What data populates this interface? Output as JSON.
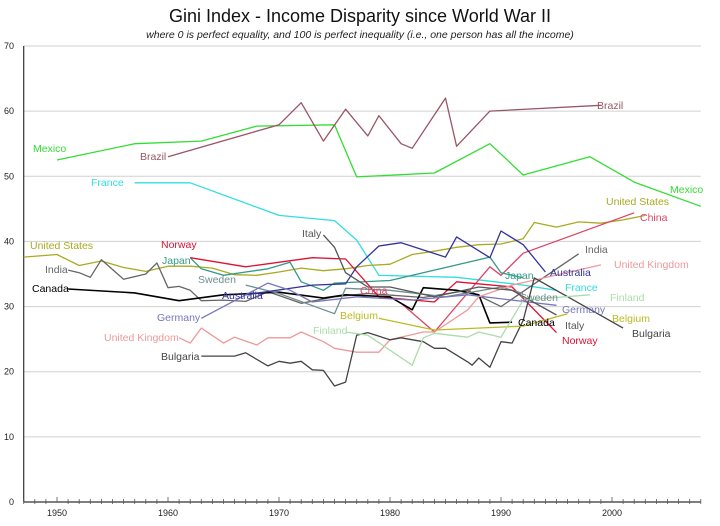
{
  "chart_data": {
    "type": "line",
    "title": "Gini Index - Income Disparity since World War II",
    "subtitle": "where 0 is perfect equality, and 100 is perfect inequality (i.e., one person has all the income)",
    "xlabel": "",
    "ylabel": "",
    "xlim": [
      1947,
      2008
    ],
    "ylim": [
      0,
      70
    ],
    "x_ticks": [
      "1950",
      "1960",
      "1970",
      "1980",
      "1990",
      "2000"
    ],
    "y_ticks": [
      "0",
      "10",
      "20",
      "30",
      "40",
      "50",
      "60",
      "70"
    ],
    "grid": true,
    "legend": "inline labels at both ends of each line",
    "series": [
      {
        "name": "Mexico",
        "color": "#33dd33",
        "points": [
          [
            1950,
            52.5
          ],
          [
            1957,
            55
          ],
          [
            1963,
            55.4
          ],
          [
            1968,
            57.7
          ],
          [
            1975,
            57.9
          ],
          [
            1977,
            49.9
          ],
          [
            1984,
            50.5
          ],
          [
            1989,
            55
          ],
          [
            1992,
            50.2
          ],
          [
            1998,
            53
          ],
          [
            2002,
            49.1
          ],
          [
            2008,
            45.4
          ]
        ]
      },
      {
        "name": "Brazil",
        "color": "#995566",
        "points": [
          [
            1960,
            53
          ],
          [
            1970,
            57.9
          ],
          [
            1972,
            61.3
          ],
          [
            1974,
            55.4
          ],
          [
            1976,
            60.3
          ],
          [
            1978,
            56.2
          ],
          [
            1979,
            59.3
          ],
          [
            1981,
            55
          ],
          [
            1982,
            54.3
          ],
          [
            1985,
            62
          ],
          [
            1986,
            54.6
          ],
          [
            1989,
            60
          ],
          [
            1999,
            60.9
          ]
        ]
      },
      {
        "name": "France",
        "color": "#33dddd",
        "points": [
          [
            1957,
            49
          ],
          [
            1962,
            49
          ],
          [
            1970,
            44
          ],
          [
            1975,
            43.2
          ],
          [
            1977,
            40.2
          ],
          [
            1979,
            34.8
          ],
          [
            1986,
            34.5
          ],
          [
            1992,
            33.3
          ],
          [
            1995,
            32.5
          ]
        ]
      },
      {
        "name": "United States",
        "color": "#aaaa22",
        "points": [
          [
            1947,
            37.6
          ],
          [
            1950,
            38
          ],
          [
            1952,
            36.3
          ],
          [
            1954,
            37
          ],
          [
            1956,
            36
          ],
          [
            1958,
            35.4
          ],
          [
            1960,
            36.2
          ],
          [
            1962,
            36.2
          ],
          [
            1964,
            35.9
          ],
          [
            1966,
            34.9
          ],
          [
            1968,
            34.8
          ],
          [
            1970,
            35.3
          ],
          [
            1972,
            35.9
          ],
          [
            1974,
            35.5
          ],
          [
            1976,
            35.8
          ],
          [
            1978,
            36.3
          ],
          [
            1980,
            36.5
          ],
          [
            1982,
            38
          ],
          [
            1984,
            38.5
          ],
          [
            1986,
            39.1
          ],
          [
            1988,
            39.5
          ],
          [
            1990,
            39.6
          ],
          [
            1992,
            40.4
          ],
          [
            1993,
            42.9
          ],
          [
            1995,
            42.2
          ],
          [
            1997,
            43
          ],
          [
            1999,
            42.8
          ],
          [
            2001,
            43.3
          ],
          [
            2003,
            44
          ]
        ]
      },
      {
        "name": "China",
        "color": "#dd4466",
        "points": [
          [
            1981,
            30.5
          ],
          [
            1984,
            26.1
          ],
          [
            1989,
            36.1
          ],
          [
            1990,
            34.8
          ],
          [
            1992,
            38.2
          ],
          [
            2002,
            44.4
          ]
        ]
      },
      {
        "name": "India",
        "color": "#666666",
        "points": [
          [
            1951,
            35.6
          ],
          [
            1952,
            35.2
          ],
          [
            1953,
            34.5
          ],
          [
            1954,
            37.2
          ],
          [
            1956,
            34.2
          ],
          [
            1958,
            35
          ],
          [
            1959,
            36.7
          ],
          [
            1960,
            32.9
          ],
          [
            1961,
            33.1
          ],
          [
            1962,
            32.5
          ],
          [
            1963,
            30.9
          ],
          [
            1965,
            31
          ],
          [
            1967,
            30.8
          ],
          [
            1969,
            32.3
          ],
          [
            1972,
            30.5
          ],
          [
            1975,
            31.5
          ],
          [
            1978,
            32
          ],
          [
            1983,
            31.4
          ],
          [
            1987,
            32.5
          ],
          [
            1990,
            30
          ],
          [
            1993,
            33.5
          ],
          [
            1997,
            38.1
          ]
        ]
      },
      {
        "name": "Japan",
        "color": "#339988",
        "points": [
          [
            1962,
            37.5
          ],
          [
            1963,
            35.8
          ],
          [
            1965,
            34.8
          ],
          [
            1967,
            35.3
          ],
          [
            1969,
            35.8
          ],
          [
            1971,
            36.8
          ],
          [
            1972,
            33.8
          ],
          [
            1974,
            32.5
          ],
          [
            1975,
            33.6
          ],
          [
            1980,
            34
          ],
          [
            1989,
            37.6
          ],
          [
            1990,
            35.2
          ],
          [
            1992,
            34.4
          ]
        ]
      },
      {
        "name": "Norway",
        "color": "#dd1133",
        "points": [
          [
            1962,
            37.5
          ],
          [
            1967,
            36.1
          ],
          [
            1973,
            37.5
          ],
          [
            1976,
            37.3
          ],
          [
            1979,
            31.5
          ],
          [
            1984,
            30.7
          ],
          [
            1986,
            33.8
          ],
          [
            1991,
            33
          ],
          [
            1995,
            26
          ]
        ]
      },
      {
        "name": "Canada",
        "color": "#000000",
        "points": [
          [
            1951,
            32.7
          ],
          [
            1957,
            32.1
          ],
          [
            1961,
            30.9
          ],
          [
            1965,
            31.8
          ],
          [
            1970,
            32.2
          ],
          [
            1974,
            31.3
          ],
          [
            1976,
            31.8
          ],
          [
            1980,
            31.5
          ],
          [
            1982,
            29.5
          ],
          [
            1983,
            32.9
          ],
          [
            1986,
            32.5
          ],
          [
            1988,
            31.8
          ],
          [
            1989,
            27.5
          ],
          [
            1991,
            27.6
          ]
        ]
      },
      {
        "name": "Sweden",
        "color": "#6f8f8f",
        "points": [
          [
            1967,
            33.3
          ],
          [
            1970,
            32
          ],
          [
            1975,
            28.9
          ],
          [
            1976,
            32.8
          ],
          [
            1980,
            32.5
          ],
          [
            1985,
            31.5
          ],
          [
            1990,
            33
          ],
          [
            1992,
            32
          ]
        ]
      },
      {
        "name": "Australia",
        "color": "#333399",
        "points": [
          [
            1967,
            31.8
          ],
          [
            1973,
            33.3
          ],
          [
            1976,
            33.5
          ],
          [
            1977,
            36.1
          ],
          [
            1979,
            39.3
          ],
          [
            1981,
            39.8
          ],
          [
            1985,
            37.6
          ],
          [
            1986,
            40.7
          ],
          [
            1989,
            37.5
          ],
          [
            1990,
            41.6
          ],
          [
            1992,
            39.5
          ],
          [
            1994,
            35.3
          ]
        ]
      },
      {
        "name": "Germany",
        "color": "#7777bb",
        "points": [
          [
            1963,
            28.2
          ],
          [
            1969,
            33.6
          ],
          [
            1971,
            32.5
          ],
          [
            1973,
            30.7
          ],
          [
            1977,
            31.5
          ],
          [
            1982,
            31
          ],
          [
            1987,
            31.8
          ],
          [
            1991,
            31
          ],
          [
            1995,
            30.2
          ]
        ]
      },
      {
        "name": "United Kingdom",
        "color": "#ee9999",
        "points": [
          [
            1961,
            25.2
          ],
          [
            1962,
            24.4
          ],
          [
            1963,
            26.7
          ],
          [
            1965,
            24.4
          ],
          [
            1966,
            25.3
          ],
          [
            1968,
            24.1
          ],
          [
            1969,
            25.2
          ],
          [
            1971,
            25.2
          ],
          [
            1972,
            26.1
          ],
          [
            1974,
            24.6
          ],
          [
            1975,
            23.6
          ],
          [
            1977,
            23
          ],
          [
            1979,
            23
          ],
          [
            1980,
            24.9
          ],
          [
            1983,
            26.1
          ],
          [
            1984,
            26.1
          ],
          [
            1987,
            29.5
          ],
          [
            1988,
            31.5
          ],
          [
            1991,
            33.3
          ],
          [
            1999,
            36.4
          ]
        ]
      },
      {
        "name": "Bulgaria",
        "color": "#444444",
        "points": [
          [
            1963,
            22.4
          ],
          [
            1966,
            22.4
          ],
          [
            1967,
            22.9
          ],
          [
            1969,
            20.9
          ],
          [
            1970,
            21.6
          ],
          [
            1971,
            21.3
          ],
          [
            1972,
            21.6
          ],
          [
            1973,
            20.3
          ],
          [
            1974,
            20.2
          ],
          [
            1975,
            17.8
          ],
          [
            1976,
            18.4
          ],
          [
            1977,
            25.6
          ],
          [
            1978,
            26
          ],
          [
            1980,
            24.9
          ],
          [
            1981,
            25.2
          ],
          [
            1983,
            24.6
          ],
          [
            1984,
            23.6
          ],
          [
            1985,
            23.6
          ],
          [
            1987,
            21.5
          ],
          [
            1987.4,
            21
          ],
          [
            1988,
            22.1
          ],
          [
            1989,
            20.7
          ],
          [
            1990,
            24.6
          ],
          [
            1991,
            24.4
          ],
          [
            1992,
            27.9
          ],
          [
            1993,
            34.4
          ],
          [
            2001,
            26.7
          ]
        ]
      },
      {
        "name": "Italy",
        "color": "#555555",
        "points": [
          [
            1974,
            41
          ],
          [
            1975,
            39.1
          ],
          [
            1976,
            35.2
          ],
          [
            1978,
            33
          ],
          [
            1980,
            33
          ],
          [
            1984,
            31.5
          ],
          [
            1988,
            33
          ],
          [
            1991,
            32.5
          ],
          [
            1995,
            28.7
          ]
        ]
      },
      {
        "name": "Belgium",
        "color": "#bbbb22",
        "points": [
          [
            1979,
            28.2
          ],
          [
            1984,
            26.4
          ],
          [
            1992,
            27
          ],
          [
            1996,
            28.9
          ]
        ]
      },
      {
        "name": "Finland",
        "color": "#aaddaa",
        "points": [
          [
            1976,
            26.1
          ],
          [
            1978,
            25.6
          ],
          [
            1982,
            21
          ],
          [
            1983,
            25.2
          ],
          [
            1984,
            25.9
          ],
          [
            1987,
            25.3
          ],
          [
            1988,
            26.1
          ],
          [
            1990,
            25.3
          ],
          [
            1992,
            31
          ],
          [
            1998,
            31.8
          ]
        ]
      }
    ]
  }
}
